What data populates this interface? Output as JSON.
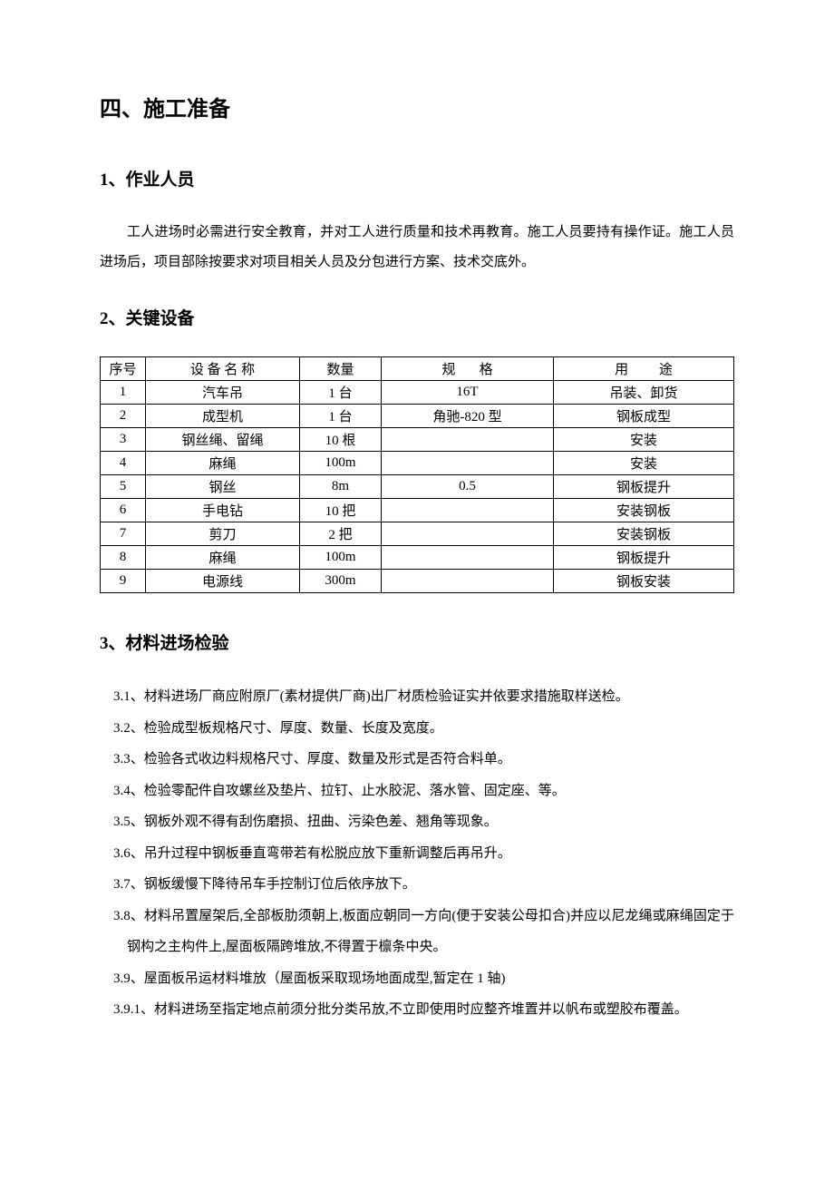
{
  "section_title": "四、施工准备",
  "sub1": {
    "title": "1、作业人员",
    "content": "工人进场时必需进行安全教育，并对工人进行质量和技术再教育。施工人员要持有操作证。施工人员进场后，项目部除按要求对项目相关人员及分包进行方案、技术交底外。"
  },
  "sub2": {
    "title": "2、关键设备",
    "table": {
      "headers": {
        "seq": "序号",
        "name": "设 备 名 称",
        "qty": "数量",
        "spec": "规",
        "spec2": "格",
        "use": "用",
        "use2": "途"
      },
      "rows": [
        {
          "seq": "1",
          "name": "汽车吊",
          "qty": "1 台",
          "spec": "16T",
          "use": "吊装、卸货"
        },
        {
          "seq": "2",
          "name": "成型机",
          "qty": "1 台",
          "spec": "角驰-820 型",
          "use": "钢板成型"
        },
        {
          "seq": "3",
          "name": "钢丝绳、留绳",
          "qty": "10 根",
          "spec": "",
          "use": "安装"
        },
        {
          "seq": "4",
          "name": "麻绳",
          "qty": "100m",
          "spec": "",
          "use": "安装"
        },
        {
          "seq": "5",
          "name": "钢丝",
          "qty": "8m",
          "spec": "0.5",
          "use": "钢板提升"
        },
        {
          "seq": "6",
          "name": "手电钻",
          "qty": "10 把",
          "spec": "",
          "use": "安装钢板"
        },
        {
          "seq": "7",
          "name": "剪刀",
          "qty": "2 把",
          "spec": "",
          "use": "安装钢板"
        },
        {
          "seq": "8",
          "name": "麻绳",
          "qty": "100m",
          "spec": "",
          "use": "钢板提升"
        },
        {
          "seq": "9",
          "name": "电源线",
          "qty": "300m",
          "spec": "",
          "use": "钢板安装"
        }
      ]
    }
  },
  "sub3": {
    "title": "3、材料进场检验",
    "items": [
      "3.1、材料进场厂商应附原厂(素材提供厂商)出厂材质检验证实并依要求措施取样送检。",
      "3.2、检验成型板规格尺寸、厚度、数量、长度及宽度。",
      "3.3、检验各式收边料规格尺寸、厚度、数量及形式是否符合料单。",
      "3.4、检验零配件自攻螺丝及垫片、拉钉、止水胶泥、落水管、固定座、等。",
      "3.5、钢板外观不得有刮伤磨损、扭曲、污染色差、翘角等现象。",
      "3.6、吊升过程中钢板垂直弯带若有松脱应放下重新调整后再吊升。",
      "3.7、钢板缓慢下降待吊车手控制订位后依序放下。",
      "3.8、材料吊置屋架后,全部板肋须朝上,板面应朝同一方向(便于安装公母扣合)并应以尼龙绳或麻绳固定于钢构之主构件上,屋面板隔跨堆放,不得置于檩条中央。",
      "3.9、屋面板吊运材料堆放（屋面板采取现场地面成型,暂定在 1 轴)",
      "3.9.1、材料进场至指定地点前须分批分类吊放,不立即使用时应整齐堆置并以帆布或塑胶布覆盖。"
    ]
  },
  "styles": {
    "text_color": "#000000",
    "background_color": "#ffffff",
    "border_color": "#000000",
    "h1_fontsize": 24,
    "h2_fontsize": 19,
    "body_fontsize": 15
  }
}
